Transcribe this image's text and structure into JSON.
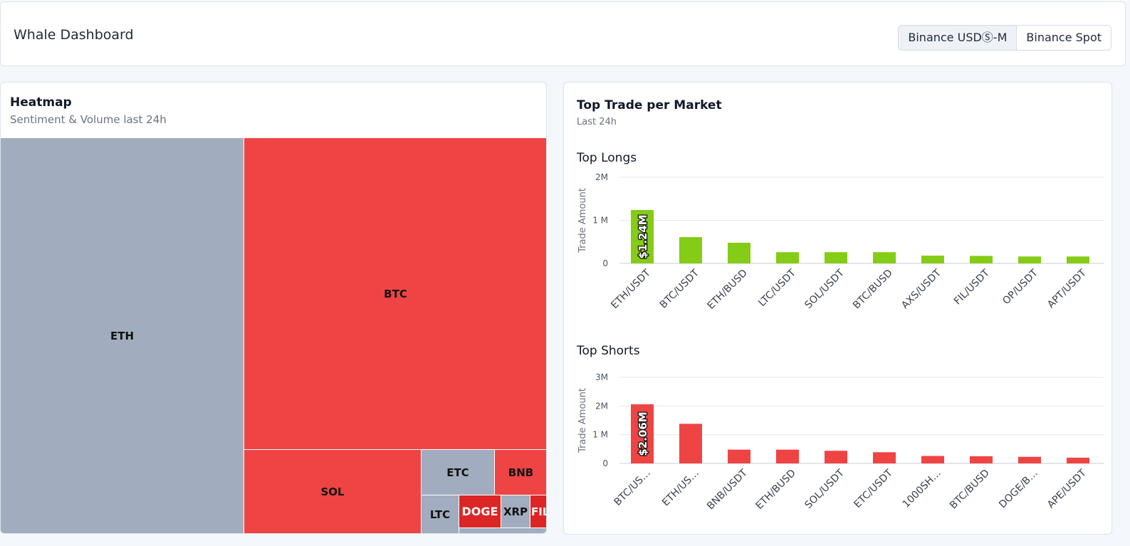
{
  "header": {
    "title": "Whale Dashboard",
    "exchanges": [
      "Binance USDⓈ-M",
      "Binance Spot"
    ],
    "active_exchange": "Binance USDⓈ-M"
  },
  "heatmap": {
    "title": "Heatmap",
    "subtitle": "Sentiment & Volume last 24h",
    "cells": [
      {
        "label": "ETH",
        "sentiment": "neutral"
      },
      {
        "label": "BTC",
        "sentiment": "bearish"
      },
      {
        "label": "SOL",
        "sentiment": "bearish"
      },
      {
        "label": "ETC",
        "sentiment": "neutral"
      },
      {
        "label": "BNB",
        "sentiment": "bearish"
      },
      {
        "label": "LTC",
        "sentiment": "neutral"
      },
      {
        "label": "DOGE",
        "sentiment": "strong-bearish"
      },
      {
        "label": "XRP",
        "sentiment": "neutral"
      },
      {
        "label": "FIL",
        "sentiment": "strong-bearish"
      }
    ]
  },
  "trades": {
    "title": "Top Trade per Market",
    "subtitle": "Last 24h"
  },
  "chart_data": [
    {
      "type": "bar",
      "title": "Top Longs",
      "ylabel": "Trade Amount",
      "ylim": [
        0,
        2000000
      ],
      "yticks": [
        {
          "v": 0,
          "label": "0"
        },
        {
          "v": 1000000,
          "label": "1 M"
        },
        {
          "v": 2000000,
          "label": "2M"
        }
      ],
      "categories": [
        "ETH/USDT",
        "BTC/USDT",
        "ETH/BUSD",
        "LTC/USDT",
        "SOL/USDT",
        "BTC/BUSD",
        "AXS/USDT",
        "FIL/USDT",
        "OP/USDT",
        "APT/USDT"
      ],
      "values": [
        1240000,
        610000,
        480000,
        260000,
        260000,
        260000,
        180000,
        175000,
        160000,
        160000
      ],
      "data_labels": [
        "$1.24M",
        "",
        "",
        "",
        "",
        "",
        "",
        "",
        "",
        ""
      ],
      "color": "#84cc16"
    },
    {
      "type": "bar",
      "title": "Top Shorts",
      "ylabel": "Trade Amount",
      "ylim": [
        0,
        3000000
      ],
      "yticks": [
        {
          "v": 0,
          "label": "0"
        },
        {
          "v": 1000000,
          "label": "1 M"
        },
        {
          "v": 2000000,
          "label": "2M"
        },
        {
          "v": 3000000,
          "label": "3M"
        }
      ],
      "categories": [
        "BTC/US…",
        "ETH/US…",
        "BNB/USDT",
        "ETH/BUSD",
        "SOL/USDT",
        "ETC/USDT",
        "1000SH…",
        "BTC/BUSD",
        "DOGE/B…",
        "APE/USDT"
      ],
      "values": [
        2060000,
        1380000,
        480000,
        480000,
        440000,
        390000,
        260000,
        250000,
        230000,
        200000
      ],
      "data_labels": [
        "$2.06M",
        "",
        "",
        "",
        "",
        "",
        "",
        "",
        "",
        ""
      ],
      "color": "#ef4444"
    }
  ]
}
